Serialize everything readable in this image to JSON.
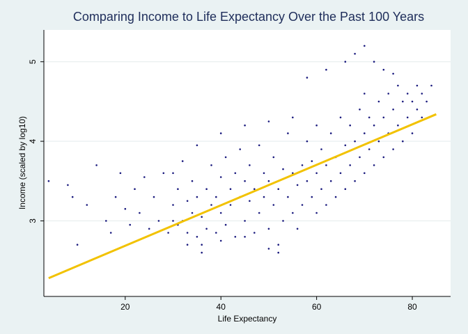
{
  "chart_data": {
    "type": "scatter",
    "title": "Comparing Income to Life Expectancy Over the Past 100 Years",
    "xlabel": "Life Expectancy",
    "ylabel": "Income (scaled by log10)",
    "xlim": [
      3,
      88
    ],
    "ylim": [
      2.05,
      5.4
    ],
    "x_ticks": [
      20,
      40,
      60,
      80
    ],
    "y_ticks": [
      3,
      4,
      5
    ],
    "grid": "horizontal",
    "colors": {
      "points": "#1a1a7e",
      "fit_line": "#f2c200",
      "plot_bg": "#ffffff",
      "page_bg": "#eaf2f3",
      "grid": "#e3ebec"
    },
    "fit_line": {
      "x": [
        4,
        85
      ],
      "y": [
        2.28,
        4.34
      ]
    },
    "series": [
      {
        "points": [
          [
            4,
            3.5
          ],
          [
            8,
            3.45
          ],
          [
            9,
            3.3
          ],
          [
            10,
            2.7
          ],
          [
            12,
            3.2
          ],
          [
            14,
            3.7
          ],
          [
            16,
            3.0
          ],
          [
            17,
            2.85
          ],
          [
            18,
            3.3
          ],
          [
            19,
            3.6
          ],
          [
            20,
            3.15
          ],
          [
            21,
            2.95
          ],
          [
            22,
            3.4
          ],
          [
            23,
            3.1
          ],
          [
            24,
            3.55
          ],
          [
            25,
            2.9
          ],
          [
            26,
            3.3
          ],
          [
            27,
            3.0
          ],
          [
            28,
            3.6
          ],
          [
            29,
            2.85
          ],
          [
            30,
            3.2
          ],
          [
            30,
            3.6
          ],
          [
            31,
            2.95
          ],
          [
            31,
            3.4
          ],
          [
            32,
            3.0
          ],
          [
            32,
            3.75
          ],
          [
            33,
            2.7
          ],
          [
            33,
            3.25
          ],
          [
            34,
            3.1
          ],
          [
            34,
            3.5
          ],
          [
            35,
            2.8
          ],
          [
            35,
            3.3
          ],
          [
            36,
            2.6
          ],
          [
            36,
            3.05
          ],
          [
            37,
            3.4
          ],
          [
            37,
            2.9
          ],
          [
            38,
            3.2
          ],
          [
            38,
            3.7
          ],
          [
            39,
            2.85
          ],
          [
            39,
            3.3
          ],
          [
            40,
            3.1
          ],
          [
            40,
            3.55
          ],
          [
            41,
            2.95
          ],
          [
            41,
            3.8
          ],
          [
            42,
            3.2
          ],
          [
            42,
            3.4
          ],
          [
            43,
            2.8
          ],
          [
            43,
            3.6
          ],
          [
            44,
            3.3
          ],
          [
            44,
            3.9
          ],
          [
            45,
            3.0
          ],
          [
            45,
            3.5
          ],
          [
            46,
            3.25
          ],
          [
            46,
            3.7
          ],
          [
            47,
            2.85
          ],
          [
            47,
            3.4
          ],
          [
            48,
            3.1
          ],
          [
            48,
            3.95
          ],
          [
            49,
            3.3
          ],
          [
            49,
            3.6
          ],
          [
            50,
            2.9
          ],
          [
            50,
            3.5
          ],
          [
            51,
            3.2
          ],
          [
            51,
            3.8
          ],
          [
            52,
            2.7
          ],
          [
            52,
            3.4
          ],
          [
            53,
            3.0
          ],
          [
            53,
            3.65
          ],
          [
            54,
            3.3
          ],
          [
            54,
            4.1
          ],
          [
            55,
            3.1
          ],
          [
            55,
            3.6
          ],
          [
            56,
            2.9
          ],
          [
            56,
            3.45
          ],
          [
            57,
            3.7
          ],
          [
            57,
            3.2
          ],
          [
            58,
            3.5
          ],
          [
            58,
            4.0
          ],
          [
            59,
            3.3
          ],
          [
            59,
            3.75
          ],
          [
            60,
            3.1
          ],
          [
            60,
            3.6
          ],
          [
            60,
            4.2
          ],
          [
            61,
            3.4
          ],
          [
            61,
            3.9
          ],
          [
            62,
            3.2
          ],
          [
            62,
            3.7
          ],
          [
            63,
            3.5
          ],
          [
            63,
            4.1
          ],
          [
            64,
            3.3
          ],
          [
            64,
            3.8
          ],
          [
            65,
            3.6
          ],
          [
            65,
            4.3
          ],
          [
            66,
            3.4
          ],
          [
            66,
            3.95
          ],
          [
            67,
            3.7
          ],
          [
            67,
            4.2
          ],
          [
            68,
            3.5
          ],
          [
            68,
            4.0
          ],
          [
            69,
            3.8
          ],
          [
            69,
            4.4
          ],
          [
            70,
            3.6
          ],
          [
            70,
            4.1
          ],
          [
            70,
            4.6
          ],
          [
            71,
            3.9
          ],
          [
            71,
            4.3
          ],
          [
            72,
            3.7
          ],
          [
            72,
            4.2
          ],
          [
            73,
            4.0
          ],
          [
            73,
            4.5
          ],
          [
            74,
            3.8
          ],
          [
            74,
            4.3
          ],
          [
            75,
            4.1
          ],
          [
            75,
            4.6
          ],
          [
            76,
            3.9
          ],
          [
            76,
            4.4
          ],
          [
            77,
            4.2
          ],
          [
            77,
            4.7
          ],
          [
            78,
            4.0
          ],
          [
            78,
            4.5
          ],
          [
            79,
            4.3
          ],
          [
            79,
            4.6
          ],
          [
            80,
            4.1
          ],
          [
            80,
            4.5
          ],
          [
            81,
            4.4
          ],
          [
            81,
            4.7
          ],
          [
            82,
            4.3
          ],
          [
            82,
            4.6
          ],
          [
            83,
            4.5
          ],
          [
            84,
            4.7
          ],
          [
            58,
            4.8
          ],
          [
            62,
            4.9
          ],
          [
            66,
            5.0
          ],
          [
            68,
            5.1
          ],
          [
            70,
            5.2
          ],
          [
            72,
            5.0
          ],
          [
            74,
            4.9
          ],
          [
            76,
            4.85
          ],
          [
            35,
            3.95
          ],
          [
            40,
            4.1
          ],
          [
            45,
            4.2
          ],
          [
            50,
            4.25
          ],
          [
            55,
            4.3
          ],
          [
            30,
            3.0
          ],
          [
            33,
            2.85
          ],
          [
            36,
            2.7
          ],
          [
            40,
            2.75
          ],
          [
            45,
            2.8
          ],
          [
            50,
            2.65
          ],
          [
            52,
            2.6
          ]
        ]
      }
    ]
  }
}
